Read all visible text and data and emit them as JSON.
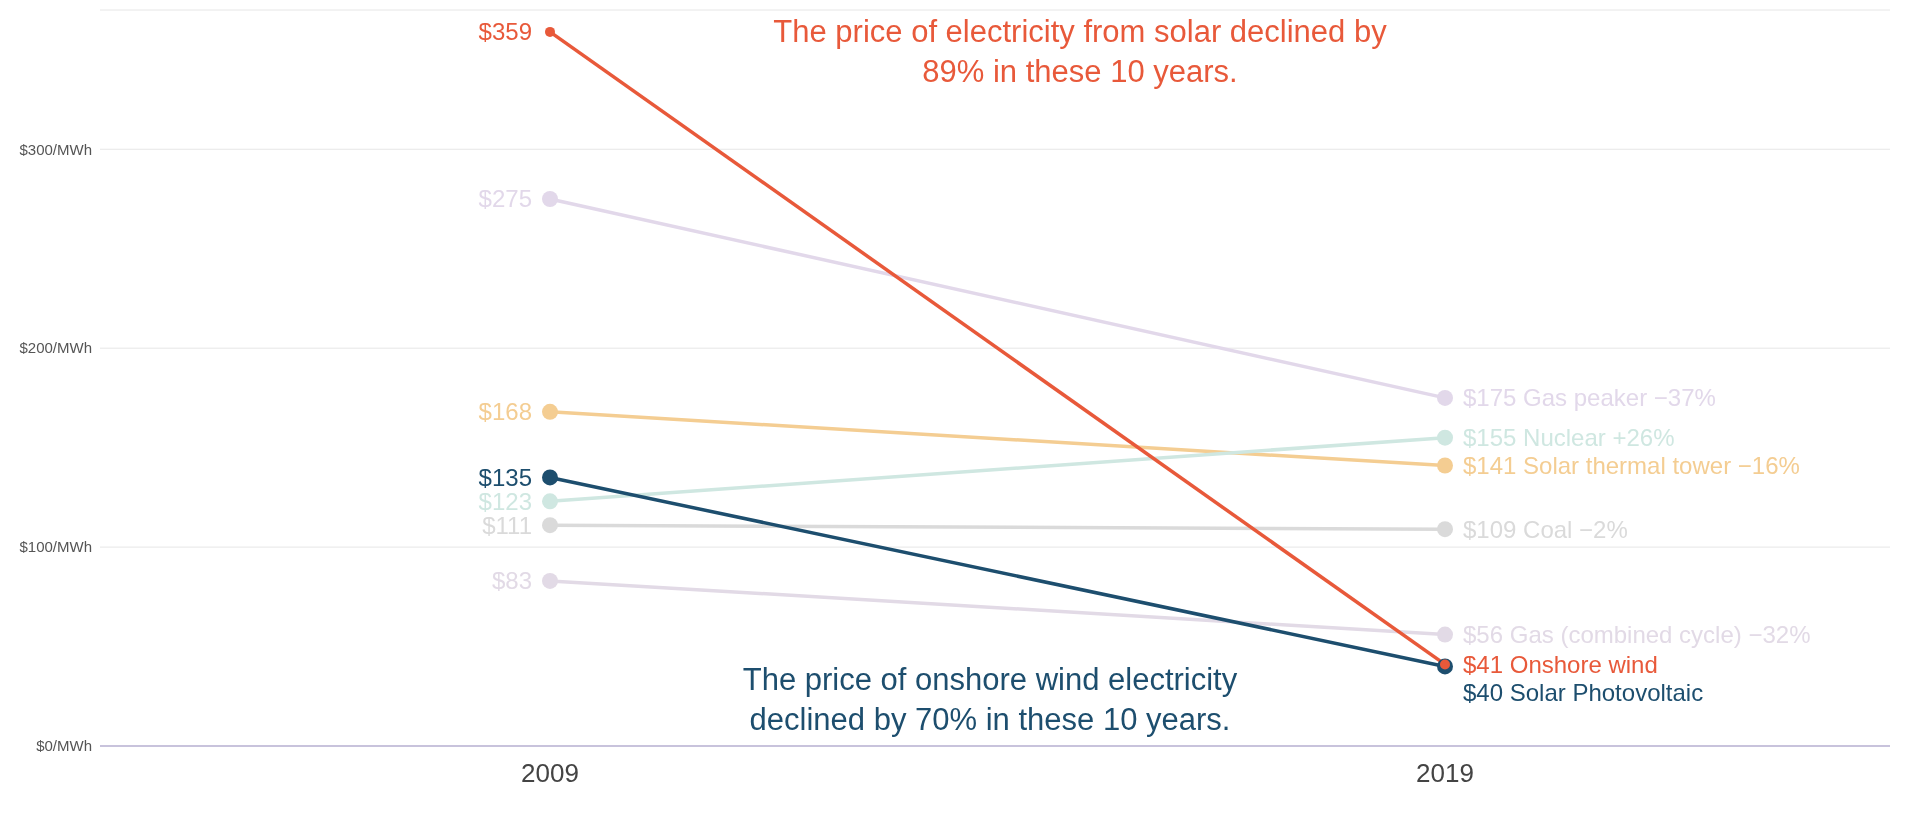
{
  "chart_data": {
    "type": "line",
    "categories": [
      "2009",
      "2019"
    ],
    "series": [
      {
        "name": "Onshore wind",
        "color": "#e8593a",
        "values": [
          359,
          41
        ],
        "value_labels": [
          "$359",
          "$41"
        ]
      },
      {
        "name": "Solar Photovoltaic",
        "color": "#1d4e6e",
        "values": [
          135,
          40
        ],
        "value_labels": [
          "$135",
          "$40"
        ]
      },
      {
        "name": "Gas peaker −37%",
        "color": "#e2d8ea",
        "values": [
          275,
          175
        ],
        "value_labels": [
          "$275",
          "$175"
        ]
      },
      {
        "name": "Nuclear +26%",
        "color": "#cfe7e1",
        "values": [
          123,
          155
        ],
        "value_labels": [
          "$123",
          "$155"
        ]
      },
      {
        "name": "Solar thermal tower −16%",
        "color": "#f4cd92",
        "values": [
          168,
          141
        ],
        "value_labels": [
          "$168",
          "$141"
        ]
      },
      {
        "name": "Coal −2%",
        "color": "#dadada",
        "values": [
          111,
          109
        ],
        "value_labels": [
          "$111",
          "$109"
        ]
      },
      {
        "name": "Gas (combined cycle) −32%",
        "color": "#e2dae6",
        "values": [
          83,
          56
        ],
        "value_labels": [
          "$83",
          "$56"
        ]
      }
    ],
    "ylim": [
      0,
      370
    ],
    "yticks": [
      {
        "value": 0,
        "label": "$0/MWh"
      },
      {
        "value": 100,
        "label": "$100/MWh"
      },
      {
        "value": 200,
        "label": "$200/MWh"
      },
      {
        "value": 300,
        "label": "$300/MWh"
      }
    ],
    "grid": "y",
    "marker": "circle",
    "legend": false,
    "annotations": [
      "The price of electricity from solar declined by 89% in these 10 years.",
      "The price of onshore wind electricity declined by 70% in these 10 years."
    ]
  }
}
